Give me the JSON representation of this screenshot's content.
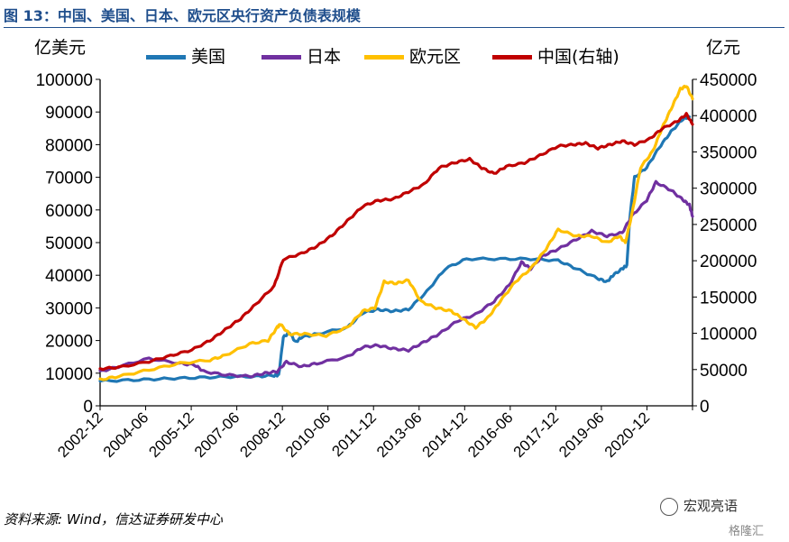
{
  "title": "图 13：中国、美国、日本、欧元区央行资产负债表规模",
  "source": "资料来源: Wind，信达证券研发中心",
  "watermark": "宏观亮语",
  "watermark2": "格隆汇",
  "chart_data": {
    "type": "line",
    "y_left_label": "亿美元",
    "y_right_label": "亿元",
    "y_left_lim": [
      0,
      100000
    ],
    "y_right_lim": [
      0,
      450000
    ],
    "y_left_ticks": [
      "0",
      "10000",
      "20000",
      "30000",
      "40000",
      "50000",
      "60000",
      "70000",
      "80000",
      "90000",
      "100000"
    ],
    "y_right_ticks": [
      "0",
      "50000",
      "100000",
      "150000",
      "200000",
      "250000",
      "300000",
      "350000",
      "400000",
      "450000"
    ],
    "x_tick_labels": [
      "2002-12",
      "2004-06",
      "2005-12",
      "2007-06",
      "2008-12",
      "2010-06",
      "2011-12",
      "2013-06",
      "2014-12",
      "2016-06",
      "2017-12",
      "2019-06",
      "2020-12"
    ],
    "x_start": 2002.9,
    "x_end": 2022.3,
    "grid": false,
    "legend_position": "top",
    "series": [
      {
        "name": "美国",
        "color": "#1f77b4",
        "axis": "left",
        "points": [
          [
            2002.9,
            7600
          ],
          [
            2004.0,
            7900
          ],
          [
            2005.0,
            8300
          ],
          [
            2006.0,
            8600
          ],
          [
            2007.0,
            8900
          ],
          [
            2008.0,
            9000
          ],
          [
            2008.6,
            9300
          ],
          [
            2008.75,
            9400
          ],
          [
            2008.9,
            21000
          ],
          [
            2009.1,
            22500
          ],
          [
            2009.3,
            19500
          ],
          [
            2009.5,
            21000
          ],
          [
            2010.0,
            22000
          ],
          [
            2011.0,
            24000
          ],
          [
            2011.5,
            28500
          ],
          [
            2012.0,
            29500
          ],
          [
            2012.5,
            29000
          ],
          [
            2013.0,
            29500
          ],
          [
            2013.6,
            35000
          ],
          [
            2014.2,
            42000
          ],
          [
            2014.9,
            45000
          ],
          [
            2016.0,
            45000
          ],
          [
            2017.0,
            45000
          ],
          [
            2017.9,
            44500
          ],
          [
            2018.5,
            42000
          ],
          [
            2019.2,
            39000
          ],
          [
            2019.5,
            38000
          ],
          [
            2019.7,
            40000
          ],
          [
            2020.0,
            42000
          ],
          [
            2020.15,
            43000
          ],
          [
            2020.25,
            58000
          ],
          [
            2020.4,
            70000
          ],
          [
            2020.8,
            73000
          ],
          [
            2021.2,
            79000
          ],
          [
            2021.6,
            84000
          ],
          [
            2022.0,
            88000
          ],
          [
            2022.2,
            88500
          ]
        ]
      },
      {
        "name": "日本",
        "color": "#7030a0",
        "axis": "left",
        "points": [
          [
            2002.9,
            10500
          ],
          [
            2003.5,
            12000
          ],
          [
            2004.5,
            14500
          ],
          [
            2005.5,
            13000
          ],
          [
            2006.0,
            12500
          ],
          [
            2006.3,
            10500
          ],
          [
            2007.0,
            9500
          ],
          [
            2007.8,
            9000
          ],
          [
            2008.3,
            10000
          ],
          [
            2008.7,
            10500
          ],
          [
            2009.0,
            13500
          ],
          [
            2009.5,
            12000
          ],
          [
            2010.0,
            13000
          ],
          [
            2011.0,
            15000
          ],
          [
            2011.5,
            18000
          ],
          [
            2012.0,
            18500
          ],
          [
            2012.5,
            17500
          ],
          [
            2013.0,
            17000
          ],
          [
            2013.5,
            19500
          ],
          [
            2014.0,
            22000
          ],
          [
            2014.6,
            26000
          ],
          [
            2015.2,
            28000
          ],
          [
            2015.8,
            32000
          ],
          [
            2016.3,
            37000
          ],
          [
            2016.7,
            44000
          ],
          [
            2017.0,
            42000
          ],
          [
            2017.4,
            46000
          ],
          [
            2017.9,
            48000
          ],
          [
            2018.5,
            51000
          ],
          [
            2019.0,
            53500
          ],
          [
            2019.5,
            52000
          ],
          [
            2020.0,
            53000
          ],
          [
            2020.3,
            58000
          ],
          [
            2020.8,
            63000
          ],
          [
            2021.1,
            68500
          ],
          [
            2021.6,
            66000
          ],
          [
            2022.0,
            63000
          ],
          [
            2022.2,
            61500
          ],
          [
            2022.3,
            58000
          ]
        ]
      },
      {
        "name": "欧元区",
        "color": "#ffc000",
        "axis": "left",
        "points": [
          [
            2002.9,
            8000
          ],
          [
            2003.5,
            9000
          ],
          [
            2004.5,
            11000
          ],
          [
            2005.5,
            13000
          ],
          [
            2006.5,
            14000
          ],
          [
            2007.0,
            15500
          ],
          [
            2007.8,
            19000
          ],
          [
            2008.4,
            20000
          ],
          [
            2008.7,
            24000
          ],
          [
            2008.8,
            25000
          ],
          [
            2009.1,
            22000
          ],
          [
            2009.6,
            22000
          ],
          [
            2010.3,
            21500
          ],
          [
            2011.0,
            24000
          ],
          [
            2011.5,
            29000
          ],
          [
            2011.9,
            30000
          ],
          [
            2012.2,
            38000
          ],
          [
            2012.6,
            37500
          ],
          [
            2013.0,
            38500
          ],
          [
            2013.4,
            32000
          ],
          [
            2013.9,
            30000
          ],
          [
            2014.4,
            29000
          ],
          [
            2014.8,
            26500
          ],
          [
            2015.2,
            24000
          ],
          [
            2015.6,
            27000
          ],
          [
            2016.0,
            32000
          ],
          [
            2016.5,
            38000
          ],
          [
            2017.0,
            42000
          ],
          [
            2017.5,
            48000
          ],
          [
            2017.9,
            54000
          ],
          [
            2018.5,
            52000
          ],
          [
            2019.0,
            52000
          ],
          [
            2019.5,
            50000
          ],
          [
            2019.9,
            52000
          ],
          [
            2020.1,
            50000
          ],
          [
            2020.3,
            58000
          ],
          [
            2020.6,
            73000
          ],
          [
            2021.0,
            78000
          ],
          [
            2021.3,
            85000
          ],
          [
            2021.6,
            91000
          ],
          [
            2021.9,
            97000
          ],
          [
            2022.1,
            98000
          ],
          [
            2022.3,
            94000
          ]
        ]
      },
      {
        "name": "中国(右轴)",
        "color": "#c00000",
        "axis": "right",
        "points": [
          [
            2002.9,
            51000
          ],
          [
            2003.5,
            53000
          ],
          [
            2004.5,
            61000
          ],
          [
            2005.2,
            69000
          ],
          [
            2005.9,
            77000
          ],
          [
            2006.5,
            90000
          ],
          [
            2007.0,
            105000
          ],
          [
            2007.5,
            120000
          ],
          [
            2008.0,
            140000
          ],
          [
            2008.6,
            165000
          ],
          [
            2008.9,
            202000
          ],
          [
            2009.5,
            210000
          ],
          [
            2010.0,
            220000
          ],
          [
            2010.5,
            235000
          ],
          [
            2011.0,
            255000
          ],
          [
            2011.5,
            275000
          ],
          [
            2012.0,
            283000
          ],
          [
            2012.5,
            285000
          ],
          [
            2013.0,
            295000
          ],
          [
            2013.5,
            305000
          ],
          [
            2014.0,
            328000
          ],
          [
            2014.5,
            335000
          ],
          [
            2015.0,
            340000
          ],
          [
            2015.4,
            328000
          ],
          [
            2015.8,
            320000
          ],
          [
            2016.2,
            330000
          ],
          [
            2016.8,
            335000
          ],
          [
            2017.3,
            345000
          ],
          [
            2017.9,
            358000
          ],
          [
            2018.4,
            360000
          ],
          [
            2018.8,
            362000
          ],
          [
            2019.2,
            355000
          ],
          [
            2019.6,
            360000
          ],
          [
            2020.0,
            365000
          ],
          [
            2020.4,
            360000
          ],
          [
            2020.9,
            368000
          ],
          [
            2021.3,
            382000
          ],
          [
            2021.8,
            392000
          ],
          [
            2022.1,
            402000
          ],
          [
            2022.3,
            388000
          ]
        ]
      }
    ]
  }
}
